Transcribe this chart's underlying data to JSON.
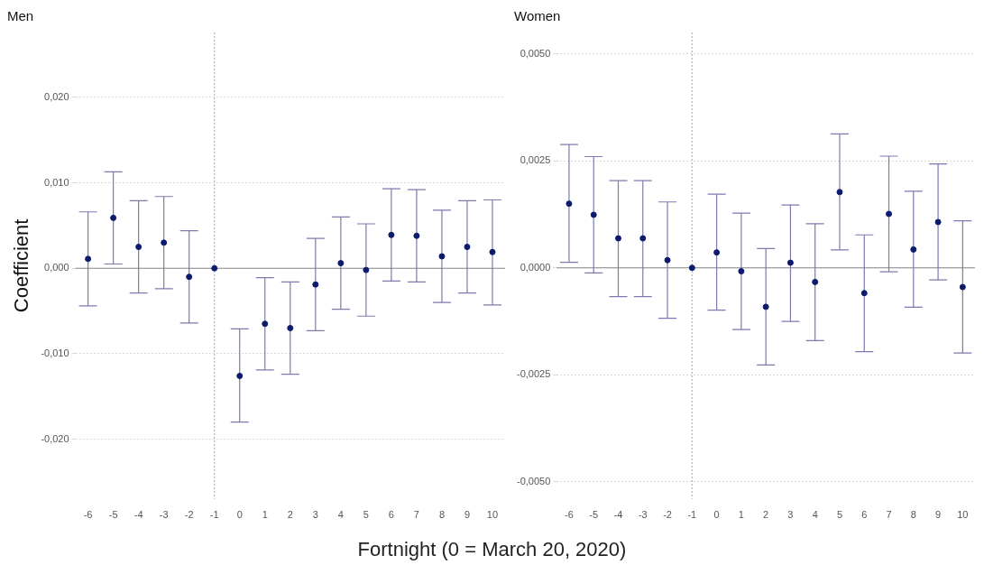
{
  "chart_data": [
    {
      "type": "scatter",
      "title": "Men",
      "xlabel": "Fortnight (0 = March 20, 2020)",
      "ylabel": "Coefficient",
      "categories": [
        "-6",
        "-5",
        "-4",
        "-3",
        "-2",
        "-1",
        "0",
        "1",
        "2",
        "3",
        "4",
        "5",
        "6",
        "7",
        "8",
        "9",
        "10"
      ],
      "series": [
        {
          "color": "#0d1b6e",
          "values": [
            0.0011,
            0.0059,
            0.0025,
            0.003,
            -0.001,
            0,
            -0.0126,
            -0.0065,
            -0.007,
            -0.0019,
            0.0006,
            -0.0002,
            0.0039,
            0.0038,
            0.0014,
            0.0025,
            0.0019
          ],
          "errors": [
            [
              -0.0044,
              0.0066
            ],
            [
              0.0005,
              0.0113
            ],
            [
              -0.0029,
              0.0079
            ],
            [
              -0.0024,
              0.0084
            ],
            [
              -0.0064,
              0.0044
            ],
            null,
            [
              -0.018,
              -0.0071
            ],
            [
              -0.0119,
              -0.0011
            ],
            [
              -0.0124,
              -0.0016
            ],
            [
              -0.0073,
              0.0035
            ],
            [
              -0.0048,
              0.006
            ],
            [
              -0.0056,
              0.0052
            ],
            [
              -0.0015,
              0.0093
            ],
            [
              -0.0016,
              0.0092
            ],
            [
              -0.004,
              0.0068
            ],
            [
              -0.0029,
              0.0079
            ],
            [
              -0.0043,
              0.008
            ]
          ]
        }
      ],
      "ylim": [
        -0.027,
        0.0276
      ],
      "yticks": [
        {
          "value": -0.02,
          "label": "-0,020"
        },
        {
          "value": -0.01,
          "label": "-0,010"
        },
        {
          "value": 0,
          "label": "0,000"
        },
        {
          "value": 0.01,
          "label": "0,010"
        },
        {
          "value": 0.02,
          "label": "0,020"
        }
      ],
      "grid": "y",
      "legend": false,
      "marker": "circle",
      "ref_lines": [
        {
          "axis": "x",
          "value": "-1",
          "color": "#aaaaaa",
          "line_style": "dotted"
        },
        {
          "axis": "y",
          "value": 0,
          "color": "#888888",
          "line_style": "solid"
        }
      ]
    },
    {
      "type": "scatter",
      "title": "Women",
      "categories": [
        "-6",
        "-5",
        "-4",
        "-3",
        "-2",
        "-1",
        "0",
        "1",
        "2",
        "3",
        "4",
        "5",
        "6",
        "7",
        "8",
        "9",
        "10"
      ],
      "series": [
        {
          "color": "#0d1b6e",
          "values": [
            0.0015,
            0.00124,
            0.00069,
            0.00069,
            0.00018,
            0,
            0.00036,
            -8e-05,
            -0.00091,
            0.00012,
            -0.00033,
            0.00177,
            -0.00059,
            0.00126,
            0.00043,
            0.00107,
            -0.00045
          ],
          "errors": [
            [
              0.00013,
              0.00288
            ],
            [
              -0.00012,
              0.0026
            ],
            [
              -0.00067,
              0.00204
            ],
            [
              -0.00067,
              0.00204
            ],
            [
              -0.00118,
              0.00154
            ],
            null,
            [
              -0.00099,
              0.00172
            ],
            [
              -0.00144,
              0.00128
            ],
            [
              -0.00227,
              0.00045
            ],
            [
              -0.00125,
              0.00147
            ],
            [
              -0.0017,
              0.00103
            ],
            [
              0.00042,
              0.00313
            ],
            [
              -0.00196,
              0.00077
            ],
            [
              -9e-05,
              0.00261
            ],
            [
              -0.00092,
              0.00179
            ],
            [
              -0.00028,
              0.00243
            ],
            [
              -0.00199,
              0.0011
            ]
          ]
        }
      ],
      "ylim": [
        -0.0054,
        0.0055
      ],
      "yticks": [
        {
          "value": -0.005,
          "label": "-0,0050"
        },
        {
          "value": -0.0025,
          "label": "-0,0025"
        },
        {
          "value": 0,
          "label": "0,0000"
        },
        {
          "value": 0.0025,
          "label": "0,0025"
        },
        {
          "value": 0.005,
          "label": "0,0050"
        }
      ],
      "grid": "y",
      "legend": false,
      "marker": "circle",
      "ref_lines": [
        {
          "axis": "x",
          "value": "-1",
          "color": "#aaaaaa",
          "line_style": "dotted"
        },
        {
          "axis": "y",
          "value": 0,
          "color": "#888888",
          "line_style": "solid"
        }
      ]
    }
  ]
}
